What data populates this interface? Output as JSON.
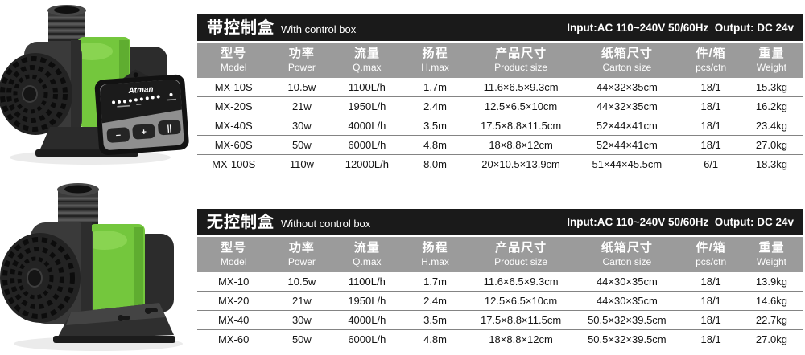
{
  "colors": {
    "table_title_bar": "#1a1a1a",
    "table_header_row": "#9b9b9b",
    "row_divider": "#848484",
    "pump_green": "#74c73d"
  },
  "tables": [
    {
      "title_cn": "带控制盒",
      "title_en": "With control box",
      "power_note": "Input:AC 110~240V 50/60Hz  Output: DC 24v",
      "columns": [
        {
          "cn": "型号",
          "en": "Model"
        },
        {
          "cn": "功率",
          "en": "Power"
        },
        {
          "cn": "流量",
          "en": "Q.max"
        },
        {
          "cn": "扬程",
          "en": "H.max"
        },
        {
          "cn": "产品尺寸",
          "en": "Product size"
        },
        {
          "cn": "纸箱尺寸",
          "en": "Carton size"
        },
        {
          "cn": "件/箱",
          "en": "pcs/ctn"
        },
        {
          "cn": "重量",
          "en": "Weight"
        }
      ],
      "rows": [
        [
          "MX-10S",
          "10.5w",
          "1100L/h",
          "1.7m",
          "11.6×6.5×9.3cm",
          "44×32×35cm",
          "18/1",
          "15.3kg"
        ],
        [
          "MX-20S",
          "21w",
          "1950L/h",
          "2.4m",
          "12.5×6.5×10cm",
          "44×32×35cm",
          "18/1",
          "16.2kg"
        ],
        [
          "MX-40S",
          "30w",
          "4000L/h",
          "3.5m",
          "17.5×8.8×11.5cm",
          "52×44×41cm",
          "18/1",
          "23.4kg"
        ],
        [
          "MX-60S",
          "50w",
          "6000L/h",
          "4.8m",
          "18×8.8×12cm",
          "52×44×41cm",
          "18/1",
          "27.0kg"
        ],
        [
          "MX-100S",
          "110w",
          "12000L/h",
          "8.0m",
          "20×10.5×13.9cm",
          "51×44×45.5cm",
          "6/1",
          "18.3kg"
        ]
      ]
    },
    {
      "title_cn": "无控制盒",
      "title_en": "Without control box",
      "power_note": "Input:AC 110~240V 50/60Hz  Output: DC 24v",
      "columns": [
        {
          "cn": "型号",
          "en": "Model"
        },
        {
          "cn": "功率",
          "en": "Power"
        },
        {
          "cn": "流量",
          "en": "Q.max"
        },
        {
          "cn": "扬程",
          "en": "H.max"
        },
        {
          "cn": "产品尺寸",
          "en": "Product size"
        },
        {
          "cn": "纸箱尺寸",
          "en": "Carton size"
        },
        {
          "cn": "件/箱",
          "en": "pcs/ctn"
        },
        {
          "cn": "重量",
          "en": "Weight"
        }
      ],
      "rows": [
        [
          "MX-10",
          "10.5w",
          "1100L/h",
          "1.7m",
          "11.6×6.5×9.3cm",
          "44×30×35cm",
          "18/1",
          "13.9kg"
        ],
        [
          "MX-20",
          "21w",
          "1950L/h",
          "2.4m",
          "12.5×6.5×10cm",
          "44×30×35cm",
          "18/1",
          "14.6kg"
        ],
        [
          "MX-40",
          "30w",
          "4000L/h",
          "3.5m",
          "17.5×8.8×11.5cm",
          "50.5×32×39.5cm",
          "18/1",
          "22.7kg"
        ],
        [
          "MX-60",
          "50w",
          "6000L/h",
          "4.8m",
          "18×8.8×12cm",
          "50.5×32×39.5cm",
          "18/1",
          "27.0kg"
        ]
      ]
    }
  ],
  "controller": {
    "brand": "Atman",
    "button_minus": "−",
    "button_plus": "+",
    "button_pause": "||"
  }
}
